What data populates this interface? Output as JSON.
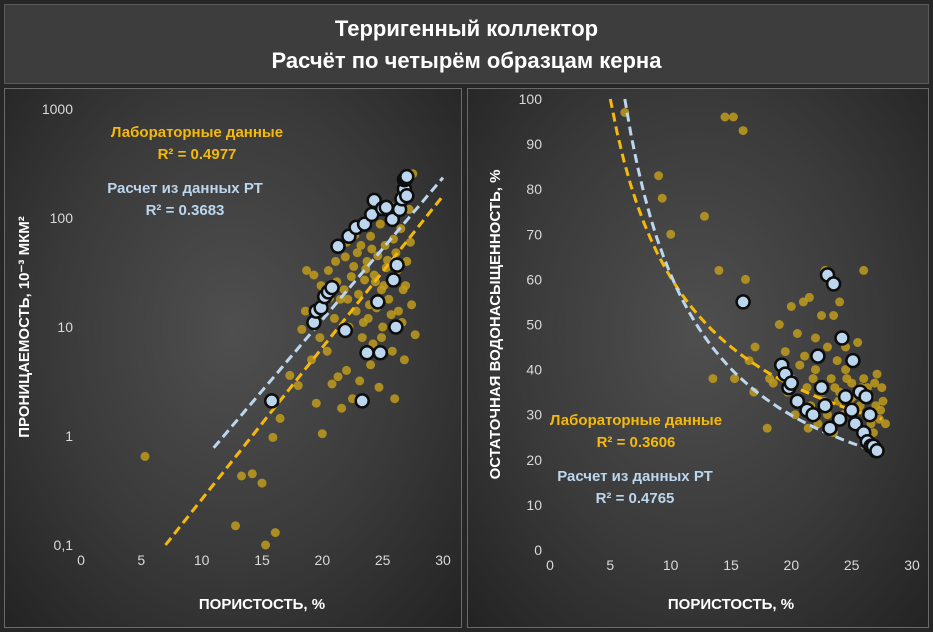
{
  "header": {
    "line1": "Терригенный коллектор",
    "line2": "Расчёт по четырём образцам керна"
  },
  "colors": {
    "lab": "#f5b90a",
    "lab_point": "#c09b1c",
    "calc": "#bcd6ee",
    "calc_edge": "#0d0d0d",
    "text": "#ffffff",
    "tick": "#d9d9d9"
  },
  "chart_data": [
    {
      "type": "scatter",
      "y_scale": "log",
      "xlabel": "ПОРИСТОСТЬ, %",
      "ylabel": "ПРОНИЦАЕМОСТЬ, 10⁻³ МКМ²",
      "xlim": [
        0,
        30
      ],
      "ylim": [
        0.1,
        1000
      ],
      "x_ticks": [
        "0",
        "5",
        "10",
        "15",
        "20",
        "25",
        "30"
      ],
      "y_ticks": [
        "0,1",
        "1",
        "10",
        "100",
        "1000"
      ],
      "grid": false,
      "annotations": {
        "lab_label": "Лабораторные данные",
        "lab_r2": "R² = 0.4977",
        "calc_label": "Расчет из данных РТ",
        "calc_r2": "R² = 0.3683"
      },
      "series": [
        {
          "role": "lab",
          "points": [
            [
              5.3,
              0.65
            ],
            [
              12.8,
              0.15
            ],
            [
              13.3,
              0.43
            ],
            [
              14.2,
              0.45
            ],
            [
              15,
              0.37
            ],
            [
              15.3,
              0.1
            ],
            [
              15.9,
              0.97
            ],
            [
              16.1,
              0.13
            ],
            [
              16.5,
              1.45
            ],
            [
              17.3,
              3.6
            ],
            [
              18,
              2.9
            ],
            [
              18.3,
              9.5
            ],
            [
              18.6,
              14
            ],
            [
              18.7,
              33
            ],
            [
              19.1,
              5
            ],
            [
              19.3,
              30
            ],
            [
              19.5,
              2
            ],
            [
              19.8,
              8
            ],
            [
              20,
              1.05
            ],
            [
              20.2,
              15
            ],
            [
              20.4,
              6
            ],
            [
              20.5,
              33
            ],
            [
              20.8,
              3
            ],
            [
              21,
              12
            ],
            [
              21.1,
              40
            ],
            [
              21.3,
              3.5
            ],
            [
              21.5,
              18
            ],
            [
              21.6,
              1.8
            ],
            [
              21.8,
              22
            ],
            [
              22,
              60
            ],
            [
              22,
              4
            ],
            [
              22.2,
              10
            ],
            [
              22.4,
              29
            ],
            [
              22.5,
              2.2
            ],
            [
              22.6,
              36
            ],
            [
              22.8,
              14
            ],
            [
              22.9,
              48
            ],
            [
              23,
              20
            ],
            [
              23.1,
              3.2
            ],
            [
              23.2,
              56
            ],
            [
              23.3,
              8
            ],
            [
              23.5,
              27
            ],
            [
              23.5,
              90
            ],
            [
              23.7,
              40
            ],
            [
              23.8,
              12
            ],
            [
              24,
              4.5
            ],
            [
              24,
              68
            ],
            [
              24.2,
              7
            ],
            [
              24.3,
              30
            ],
            [
              24.5,
              15
            ],
            [
              24.6,
              45
            ],
            [
              24.7,
              2.8
            ],
            [
              24.8,
              88
            ],
            [
              24.9,
              22
            ],
            [
              25,
              10
            ],
            [
              25.2,
              56
            ],
            [
              25.3,
              35
            ],
            [
              25.5,
              18
            ],
            [
              25.6,
              130
            ],
            [
              25.8,
              6
            ],
            [
              26,
              28
            ],
            [
              26,
              2.2
            ],
            [
              26.1,
              48
            ],
            [
              26.3,
              14
            ],
            [
              26.5,
              80
            ],
            [
              26.7,
              22
            ],
            [
              26.8,
              5
            ],
            [
              27,
              40
            ],
            [
              27.2,
              120
            ],
            [
              27.4,
              16
            ],
            [
              27.5,
              255
            ],
            [
              27.7,
              8.5
            ],
            [
              21.2,
              26
            ],
            [
              22.7,
              70
            ],
            [
              23.6,
              34
            ],
            [
              24.1,
              52
            ],
            [
              25.1,
              24
            ],
            [
              25.9,
              64
            ],
            [
              26.6,
              11
            ],
            [
              19.9,
              24
            ],
            [
              20.6,
              18.5
            ],
            [
              21.9,
              44
            ],
            [
              23.9,
              16
            ],
            [
              24.4,
              26
            ],
            [
              25.4,
              41
            ],
            [
              26.2,
              33
            ],
            [
              22.1,
              18
            ],
            [
              23.4,
              11
            ],
            [
              24.9,
              8
            ],
            [
              25.7,
              13
            ],
            [
              26.9,
              24
            ],
            [
              27.3,
              60
            ]
          ]
        },
        {
          "role": "calc",
          "points": [
            [
              15.8,
              2.1
            ],
            [
              19.3,
              11
            ],
            [
              19.5,
              14
            ],
            [
              19.9,
              15
            ],
            [
              20.2,
              19
            ],
            [
              20.5,
              21
            ],
            [
              20.8,
              23
            ],
            [
              21.3,
              55
            ],
            [
              21.9,
              9.3
            ],
            [
              22.2,
              68
            ],
            [
              22.8,
              82
            ],
            [
              23.3,
              2.1
            ],
            [
              23.5,
              88
            ],
            [
              23.7,
              5.8
            ],
            [
              24.1,
              108
            ],
            [
              24.3,
              145
            ],
            [
              24.6,
              17
            ],
            [
              24.8,
              5.8
            ],
            [
              25,
              122
            ],
            [
              25.3,
              125
            ],
            [
              25.8,
              97
            ],
            [
              25.9,
              27
            ],
            [
              26.1,
              10
            ],
            [
              26.2,
              37
            ],
            [
              26.4,
              120
            ],
            [
              26.6,
              150
            ],
            [
              26.8,
              185
            ],
            [
              26.8,
              225
            ],
            [
              26.9,
              230
            ],
            [
              27,
              240
            ],
            [
              27,
              160
            ]
          ]
        }
      ],
      "trendlines": {
        "lab": {
          "x": [
            7,
            30
          ],
          "y": [
            0.1,
            160
          ]
        },
        "calc": {
          "x": [
            11,
            30
          ],
          "y": [
            0.78,
            235
          ]
        }
      }
    },
    {
      "type": "scatter",
      "xlabel": "ПОРИСТОСТЬ, %",
      "ylabel": "ОСТАТОЧНАЯ ВОДОНАСЫЩЕННОСТЬ, %",
      "xlim": [
        0,
        30
      ],
      "ylim": [
        0,
        100
      ],
      "x_ticks": [
        "0",
        "5",
        "10",
        "15",
        "20",
        "25",
        "30"
      ],
      "y_ticks": [
        "0",
        "10",
        "20",
        "30",
        "40",
        "50",
        "60",
        "70",
        "80",
        "90",
        "100"
      ],
      "grid": false,
      "annotations": {
        "lab_label": "Лабораторные данные",
        "lab_r2": "R² = 0.3606",
        "calc_label": "Расчет из данных РТ",
        "calc_r2": "R² = 0.4765"
      },
      "series": [
        {
          "role": "lab",
          "points": [
            [
              6.2,
              97
            ],
            [
              9,
              83
            ],
            [
              9.3,
              78
            ],
            [
              10,
              70
            ],
            [
              12.8,
              74
            ],
            [
              13.5,
              38
            ],
            [
              14,
              62
            ],
            [
              14.5,
              96
            ],
            [
              15.2,
              96
            ],
            [
              15.3,
              38
            ],
            [
              16,
              93
            ],
            [
              16.2,
              60
            ],
            [
              16.5,
              42
            ],
            [
              17,
              45
            ],
            [
              18,
              27
            ],
            [
              18.5,
              37
            ],
            [
              19,
              50
            ],
            [
              19.5,
              44
            ],
            [
              20,
              54
            ],
            [
              20,
              38
            ],
            [
              20.3,
              30
            ],
            [
              20.5,
              48
            ],
            [
              21,
              55
            ],
            [
              21.1,
              43
            ],
            [
              21.3,
              36
            ],
            [
              21.5,
              56
            ],
            [
              21.6,
              32
            ],
            [
              22,
              47
            ],
            [
              22,
              40
            ],
            [
              22.2,
              28
            ],
            [
              22.5,
              52
            ],
            [
              22.5,
              35
            ],
            [
              22.8,
              62
            ],
            [
              23,
              45
            ],
            [
              23,
              30
            ],
            [
              23.3,
              38
            ],
            [
              23.5,
              52
            ],
            [
              23.5,
              26
            ],
            [
              23.8,
              42
            ],
            [
              24,
              35
            ],
            [
              24,
              55
            ],
            [
              24.3,
              30
            ],
            [
              24.5,
              40
            ],
            [
              24.5,
              45
            ],
            [
              24.8,
              33
            ],
            [
              25,
              37
            ],
            [
              25,
              28
            ],
            [
              25.3,
              42
            ],
            [
              25.5,
              31
            ],
            [
              25.5,
              46
            ],
            [
              25.8,
              36
            ],
            [
              26,
              38
            ],
            [
              26,
              62
            ],
            [
              26.2,
              30
            ],
            [
              26.5,
              34
            ],
            [
              26.8,
              26
            ],
            [
              27,
              32
            ],
            [
              27.1,
              39
            ],
            [
              27.3,
              29
            ],
            [
              27.5,
              36
            ],
            [
              27.6,
              33
            ],
            [
              27.8,
              28
            ],
            [
              19.2,
              40
            ],
            [
              20.7,
              41
            ],
            [
              21.8,
              38
            ],
            [
              22.7,
              33
            ],
            [
              23.6,
              36
            ],
            [
              24.6,
              38
            ],
            [
              25.1,
              34
            ],
            [
              26.3,
              36
            ],
            [
              26.9,
              37
            ],
            [
              27.4,
              31
            ],
            [
              18.2,
              38
            ],
            [
              19.7,
              35
            ],
            [
              20.9,
              32
            ],
            [
              22.3,
              36
            ],
            [
              23.9,
              33
            ],
            [
              25.7,
              32
            ],
            [
              16.9,
              35
            ],
            [
              21.4,
              27
            ],
            [
              24.2,
              29
            ],
            [
              26.6,
              28
            ]
          ]
        },
        {
          "role": "calc",
          "points": [
            [
              16,
              55
            ],
            [
              19.2,
              41
            ],
            [
              19.5,
              39
            ],
            [
              19.8,
              36
            ],
            [
              20,
              37
            ],
            [
              20.5,
              33
            ],
            [
              21.3,
              31
            ],
            [
              21.8,
              30
            ],
            [
              22.2,
              43
            ],
            [
              22.5,
              36
            ],
            [
              22.8,
              32
            ],
            [
              23,
              61
            ],
            [
              23.2,
              27
            ],
            [
              23.5,
              59
            ],
            [
              24,
              29
            ],
            [
              24.2,
              47
            ],
            [
              24.5,
              34
            ],
            [
              25,
              31
            ],
            [
              25.1,
              42
            ],
            [
              25.3,
              28
            ],
            [
              25.7,
              35
            ],
            [
              26,
              26
            ],
            [
              26.2,
              34
            ],
            [
              26.5,
              30
            ],
            [
              26.3,
              24
            ],
            [
              26.6,
              23
            ],
            [
              27,
              22
            ],
            [
              26.8,
              23
            ],
            [
              27.1,
              22
            ]
          ]
        }
      ],
      "trendlines": {
        "lab": {
          "x": [
            5,
            27.5
          ],
          "y": [
            100,
            29
          ]
        },
        "calc": {
          "x": [
            6.2,
            27.5
          ],
          "y": [
            100,
            21.5
          ]
        }
      }
    }
  ]
}
